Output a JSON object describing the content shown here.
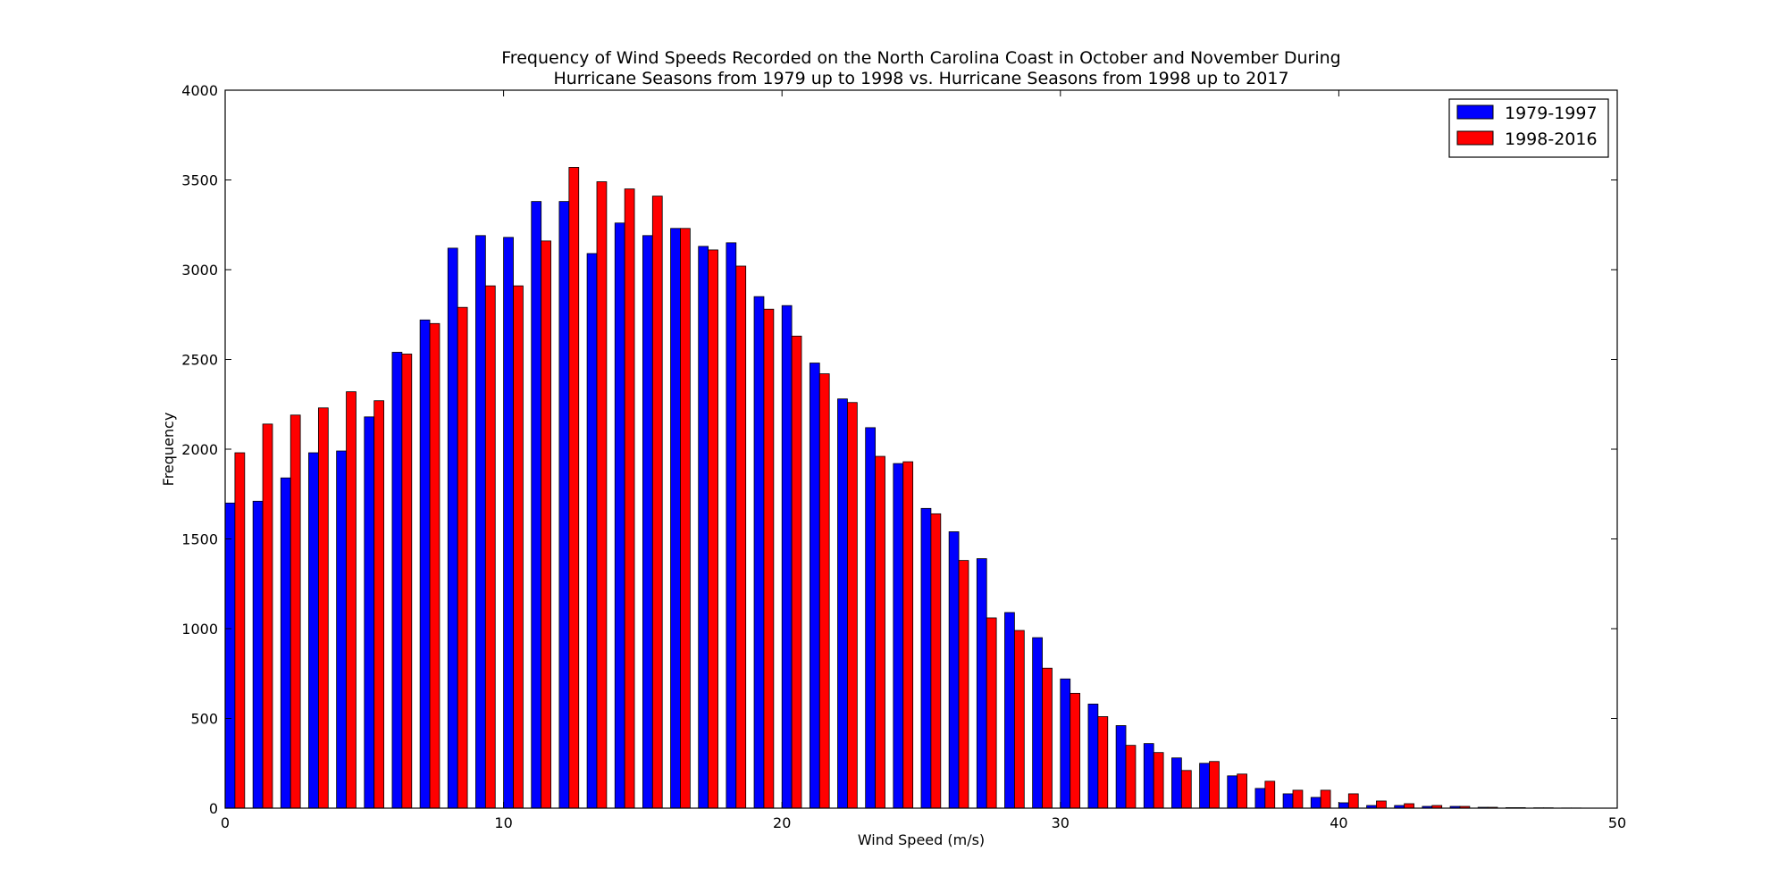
{
  "chart_data": {
    "type": "bar",
    "title": "Frequency of Wind Speeds Recorded on the North Carolina Coast in October and November During Hurricane Seasons from 1979 up to 1998 vs. Hurricane Seasons from 1998 up to 2017",
    "title_lines": [
      "Frequency of Wind Speeds Recorded on the North Carolina Coast in October and November During",
      "Hurricane Seasons from 1979 up to 1998 vs. Hurricane Seasons from 1998 up to 2017"
    ],
    "xlabel": "Wind Speed (m/s)",
    "ylabel": "Frequency",
    "xlim": [
      0,
      50
    ],
    "ylim": [
      0,
      4000
    ],
    "xticks": [
      0,
      10,
      20,
      30,
      40,
      50
    ],
    "yticks": [
      0,
      500,
      1000,
      1500,
      2000,
      2500,
      3000,
      3500,
      4000
    ],
    "grid": false,
    "legend_position": "top-right",
    "bin_width": 1,
    "x": [
      0,
      1,
      2,
      3,
      4,
      5,
      6,
      7,
      8,
      9,
      10,
      11,
      12,
      13,
      14,
      15,
      16,
      17,
      18,
      19,
      20,
      21,
      22,
      23,
      24,
      25,
      26,
      27,
      28,
      29,
      30,
      31,
      32,
      33,
      34,
      35,
      36,
      37,
      38,
      39,
      40,
      41,
      42,
      43,
      44,
      45,
      46,
      47,
      48,
      49
    ],
    "series": [
      {
        "name": "1979-1997",
        "color": "#0000ff",
        "values": [
          1700,
          1710,
          1840,
          1980,
          1990,
          2180,
          2540,
          2720,
          3120,
          3190,
          3180,
          3380,
          3380,
          3090,
          3260,
          3190,
          3230,
          3130,
          3150,
          2850,
          2800,
          2480,
          2280,
          2120,
          1920,
          1670,
          1540,
          1390,
          1090,
          950,
          720,
          580,
          460,
          360,
          280,
          250,
          180,
          110,
          80,
          60,
          30,
          15,
          15,
          10,
          10,
          5,
          3,
          2,
          1,
          0
        ]
      },
      {
        "name": "1998-2016",
        "color": "#ff0000",
        "values": [
          1980,
          2140,
          2190,
          2230,
          2320,
          2270,
          2530,
          2700,
          2790,
          2910,
          2910,
          3160,
          3570,
          3490,
          3450,
          3410,
          3230,
          3110,
          3020,
          2780,
          2630,
          2420,
          2260,
          1960,
          1930,
          1640,
          1380,
          1060,
          990,
          780,
          640,
          510,
          350,
          310,
          210,
          260,
          190,
          150,
          100,
          100,
          80,
          40,
          25,
          15,
          10,
          5,
          3,
          2,
          1,
          0
        ]
      }
    ]
  }
}
